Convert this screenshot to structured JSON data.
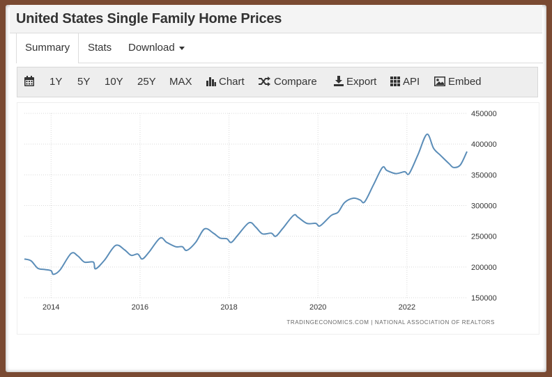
{
  "page_title": "United States Single Family Home Prices",
  "tabs": [
    {
      "label": "Summary"
    },
    {
      "label": "Stats"
    },
    {
      "label": "Download"
    }
  ],
  "toolbar": {
    "ranges": [
      "1Y",
      "5Y",
      "10Y",
      "25Y",
      "MAX"
    ],
    "chart_label": "Chart",
    "compare_label": "Compare",
    "export_label": "Export",
    "api_label": "API",
    "embed_label": "Embed"
  },
  "icons": [
    "calendar-icon",
    "bar-chart-icon",
    "shuffle-icon",
    "download-icon",
    "grid-icon",
    "image-icon"
  ],
  "colors": {
    "line": "#5b8db8",
    "frame": "#7a4a32",
    "toolbar_bg": "#eeeeee"
  },
  "chart_data": {
    "type": "line",
    "title": "United States Single Family Home Prices",
    "xlabel": "",
    "ylabel": "",
    "x_ticks": [
      "2014",
      "2016",
      "2018",
      "2020",
      "2022"
    ],
    "y_ticks": [
      "150000",
      "200000",
      "250000",
      "300000",
      "350000",
      "400000",
      "450000"
    ],
    "xlim": [
      2013.4,
      2023.35
    ],
    "ylim": [
      150000,
      450000
    ],
    "grid": true,
    "source": "TRADINGECONOMICS.COM | NATIONAL ASSOCIATION OF REALTORS",
    "series": [
      {
        "name": "United States Single Family Home Prices",
        "x": [
          2013.4,
          2013.55,
          2013.7,
          2013.85,
          2014.0,
          2014.05,
          2014.2,
          2014.45,
          2014.6,
          2014.75,
          2014.95,
          2015.0,
          2015.2,
          2015.45,
          2015.65,
          2015.8,
          2015.95,
          2016.05,
          2016.2,
          2016.45,
          2016.6,
          2016.8,
          2016.95,
          2017.05,
          2017.25,
          2017.45,
          2017.65,
          2017.8,
          2017.95,
          2018.05,
          2018.2,
          2018.45,
          2018.6,
          2018.75,
          2018.95,
          2019.05,
          2019.2,
          2019.45,
          2019.55,
          2019.75,
          2019.95,
          2020.05,
          2020.3,
          2020.45,
          2020.6,
          2020.8,
          2020.95,
          2021.05,
          2021.25,
          2021.45,
          2021.55,
          2021.75,
          2021.95,
          2022.05,
          2022.25,
          2022.45,
          2022.6,
          2022.75,
          2022.95,
          2023.05,
          2023.2,
          2023.35
        ],
        "values": [
          213000,
          210000,
          198000,
          196000,
          194000,
          188000,
          195000,
          222000,
          218000,
          208000,
          208000,
          197000,
          211000,
          235000,
          228000,
          219000,
          221000,
          213000,
          224000,
          247000,
          240000,
          233000,
          233000,
          227000,
          240000,
          262000,
          255000,
          247000,
          246000,
          240000,
          252000,
          272000,
          265000,
          254000,
          255000,
          250000,
          262000,
          284000,
          281000,
          271000,
          271000,
          267000,
          284000,
          289000,
          305000,
          312000,
          309000,
          306000,
          334000,
          362000,
          357000,
          352000,
          355000,
          352000,
          383000,
          416000,
          393000,
          382000,
          368000,
          362000,
          366000,
          388000
        ]
      }
    ]
  }
}
